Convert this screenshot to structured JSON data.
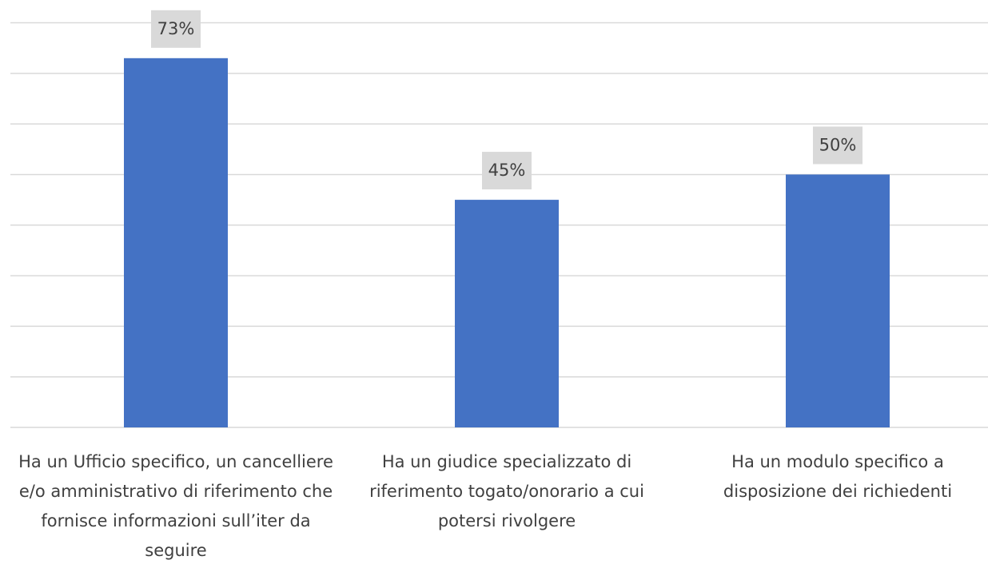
{
  "chart_data": {
    "type": "bar",
    "categories": [
      "Ha un Ufficio specifico, un cancelliere e/o amministrativo di riferimento che fornisce informazioni sull’iter da seguire",
      "Ha un giudice specializzato di riferimento togato/onorario a cui potersi rivolgere",
      "Ha un modulo specifico a disposizione dei richiedenti"
    ],
    "values": [
      73,
      45,
      50
    ],
    "value_labels": [
      "73%",
      "45%",
      "50%"
    ],
    "color": "#4472c4",
    "ylim": [
      0,
      80
    ],
    "yticks": [
      0,
      10,
      20,
      30,
      40,
      50,
      60,
      70,
      80
    ],
    "grid": true
  }
}
